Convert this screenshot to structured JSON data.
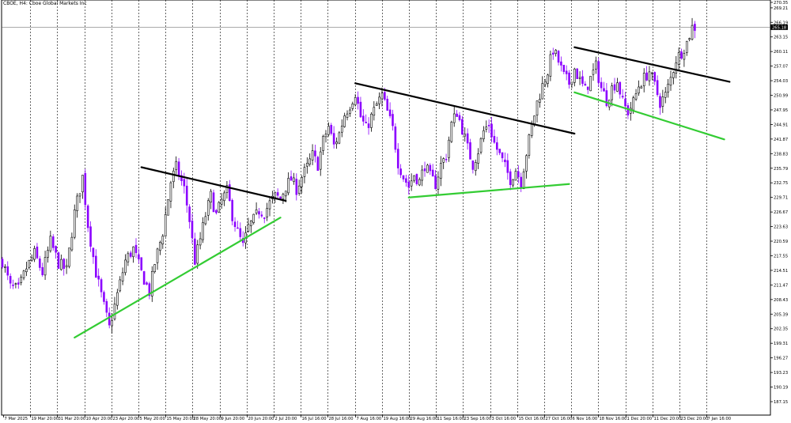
{
  "chart_data": {
    "type": "candlestick",
    "symbol_title": "CBOE, H4: Cboe Global Markets Inc",
    "current_price": 265.18,
    "colors": {
      "bull_candle": "#000000",
      "bear_candle": "#8b00ff",
      "resistance_line": "#000000",
      "support_line": "#33cc33",
      "grid": "#000000",
      "price_marker_bg": "#000000",
      "price_marker_text": "#ffffff"
    },
    "grid": true,
    "ylim": [
      185.0,
      270.5
    ],
    "y_ticks": [
      "270.35",
      "269.21",
      "266.19",
      "263.15",
      "260.11",
      "257.07",
      "254.03",
      "250.99",
      "247.95",
      "244.91",
      "241.87",
      "238.83",
      "235.79",
      "232.75",
      "229.71",
      "226.67",
      "223.63",
      "220.59",
      "217.55",
      "214.51",
      "211.47",
      "208.43",
      "205.39",
      "202.35",
      "199.31",
      "196.27",
      "193.23",
      "190.19",
      "187.15"
    ],
    "x_ticks": [
      "7 Mar 2025",
      "19 Mar 20:00",
      "31 Mar 20:00",
      "10 Apr 20:00",
      "23 Apr 20:00",
      "5 May 20:00",
      "15 May 20:00",
      "28 May 20:00",
      "9 Jun 20:00",
      "20 Jun 20:00",
      "2 Jul 20:00",
      "16 Jul 16:00",
      "28 Jul 16:00",
      "7 Aug 16:00",
      "19 Aug 16:00",
      "29 Aug 16:00",
      "11 Sep 16:00",
      "23 Sep 16:00",
      "3 Oct 16:00",
      "15 Oct 16:00",
      "27 Oct 16:00",
      "6 Nov 16:00",
      "18 Nov 16:00",
      "1 Dec 20:00",
      "11 Dec 20:00",
      "23 Dec 20:00",
      "7 Jan 16:00"
    ],
    "close_path": [
      [
        0,
        216.5
      ],
      [
        3,
        211.0
      ],
      [
        6,
        210.5
      ],
      [
        9,
        215.0
      ],
      [
        12,
        218.0
      ],
      [
        15,
        214.0
      ],
      [
        18,
        220.5
      ],
      [
        21,
        216.0
      ],
      [
        24,
        214.5
      ],
      [
        27,
        226.5
      ],
      [
        30,
        234.0
      ],
      [
        32,
        224.0
      ],
      [
        35,
        214.0
      ],
      [
        38,
        207.0
      ],
      [
        40,
        202.5
      ],
      [
        43,
        209.5
      ],
      [
        46,
        216.5
      ],
      [
        49,
        219.0
      ],
      [
        52,
        214.0
      ],
      [
        55,
        210.0
      ],
      [
        57,
        216.0
      ],
      [
        60,
        222.5
      ],
      [
        63,
        233.0
      ],
      [
        65,
        236.0
      ],
      [
        68,
        231.5
      ],
      [
        70,
        225.0
      ],
      [
        72,
        216.5
      ],
      [
        74,
        221.0
      ],
      [
        76,
        226.0
      ],
      [
        78,
        230.0
      ],
      [
        80,
        226.0
      ],
      [
        82,
        229.0
      ],
      [
        84,
        231.0
      ],
      [
        86,
        226.0
      ],
      [
        88,
        222.5
      ],
      [
        90,
        219.5
      ],
      [
        92,
        223.5
      ],
      [
        94,
        225.0
      ],
      [
        96,
        227.0
      ],
      [
        98,
        226.5
      ],
      [
        100,
        228.5
      ],
      [
        102,
        230.0
      ],
      [
        104,
        229.5
      ],
      [
        106,
        232.0
      ],
      [
        108,
        233.5
      ],
      [
        110,
        231.5
      ],
      [
        112,
        234.0
      ],
      [
        114,
        236.0
      ],
      [
        116,
        238.5
      ],
      [
        118,
        236.5
      ],
      [
        120,
        241.5
      ],
      [
        122,
        244.5
      ],
      [
        124,
        240.5
      ],
      [
        126,
        243.0
      ],
      [
        128,
        247.0
      ],
      [
        130,
        249.0
      ],
      [
        132,
        251.5
      ],
      [
        134,
        246.5
      ],
      [
        136,
        244.0
      ],
      [
        138,
        246.5
      ],
      [
        140,
        249.0
      ],
      [
        142,
        251.0
      ],
      [
        144,
        247.5
      ],
      [
        146,
        244.0
      ],
      [
        148,
        237.0
      ],
      [
        150,
        234.0
      ],
      [
        152,
        232.0
      ],
      [
        154,
        234.5
      ],
      [
        156,
        233.0
      ],
      [
        158,
        236.5
      ],
      [
        160,
        234.0
      ],
      [
        162,
        232.5
      ],
      [
        164,
        236.5
      ],
      [
        166,
        238.5
      ],
      [
        168,
        245.0
      ],
      [
        170,
        247.5
      ],
      [
        172,
        244.0
      ],
      [
        174,
        240.0
      ],
      [
        176,
        236.5
      ],
      [
        178,
        239.5
      ],
      [
        180,
        243.5
      ],
      [
        182,
        245.0
      ],
      [
        184,
        241.0
      ],
      [
        186,
        238.5
      ],
      [
        188,
        236.0
      ],
      [
        190,
        233.5
      ],
      [
        192,
        235.5
      ],
      [
        194,
        233.0
      ],
      [
        196,
        239.0
      ],
      [
        198,
        244.5
      ],
      [
        200,
        249.5
      ],
      [
        202,
        253.0
      ],
      [
        204,
        256.0
      ],
      [
        206,
        260.5
      ],
      [
        208,
        258.0
      ],
      [
        210,
        255.0
      ],
      [
        212,
        253.5
      ],
      [
        214,
        256.5
      ],
      [
        216,
        254.0
      ],
      [
        218,
        252.0
      ],
      [
        220,
        254.5
      ],
      [
        222,
        257.0
      ],
      [
        224,
        252.5
      ],
      [
        226,
        250.0
      ],
      [
        228,
        252.5
      ],
      [
        230,
        254.0
      ],
      [
        232,
        249.5
      ],
      [
        234,
        247.5
      ],
      [
        236,
        249.5
      ],
      [
        238,
        253.0
      ],
      [
        240,
        254.5
      ],
      [
        242,
        256.0
      ],
      [
        244,
        253.0
      ],
      [
        246,
        249.5
      ],
      [
        248,
        251.0
      ],
      [
        250,
        254.5
      ],
      [
        252,
        258.5
      ],
      [
        254,
        260.0
      ],
      [
        256,
        262.0
      ],
      [
        258,
        265.18
      ]
    ],
    "n_candles": 260,
    "trendlines": [
      {
        "kind": "resistance",
        "p1": [
          52,
          236.0
        ],
        "p2": [
          106,
          229.0
        ]
      },
      {
        "kind": "support",
        "p1": [
          27,
          200.5
        ],
        "p2": [
          104,
          225.5
        ]
      },
      {
        "kind": "resistance",
        "p1": [
          132,
          253.5
        ],
        "p2": [
          214,
          243.0
        ]
      },
      {
        "kind": "support",
        "p1": [
          152,
          229.7
        ],
        "p2": [
          212,
          232.5
        ]
      },
      {
        "kind": "resistance",
        "p1": [
          214,
          261.0
        ],
        "p2": [
          272,
          253.8
        ]
      },
      {
        "kind": "support",
        "p1": [
          214,
          251.6
        ],
        "p2": [
          270,
          241.8
        ]
      }
    ]
  }
}
